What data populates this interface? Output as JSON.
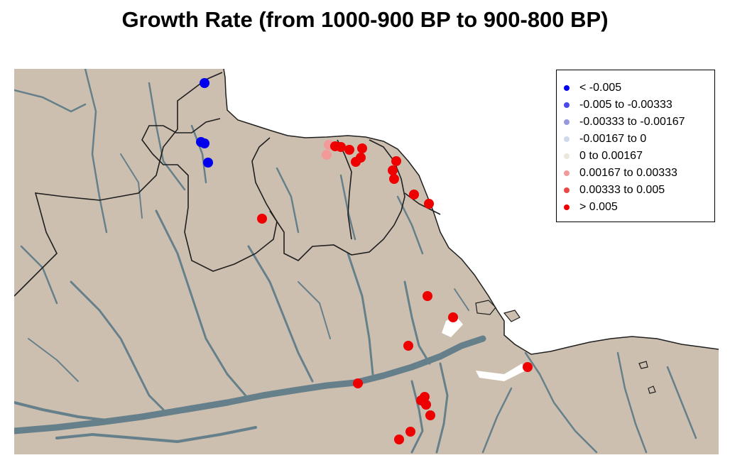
{
  "title": "Growth Rate (from 1000-900 BP to 900-800 BP)",
  "colors": {
    "land": "#cdbfb0",
    "water": "#65808a",
    "border": "#1f1f1f",
    "background": "#ffffff"
  },
  "legend": [
    {
      "label": "< -0.005",
      "color": "#0000ee"
    },
    {
      "label": "-0.005 to -0.00333",
      "color": "#4a4ae8"
    },
    {
      "label": "-0.00333 to -0.00167",
      "color": "#9898e0"
    },
    {
      "label": "-0.00167 to 0",
      "color": "#d0d8ee"
    },
    {
      "label": "0 to 0.00167",
      "color": "#ede6dc"
    },
    {
      "label": "0.00167 to 0.00333",
      "color": "#f29a9a"
    },
    {
      "label": "0.00333 to 0.005",
      "color": "#e84848"
    },
    {
      "label": "> 0.005",
      "color": "#ee0000"
    }
  ]
}
